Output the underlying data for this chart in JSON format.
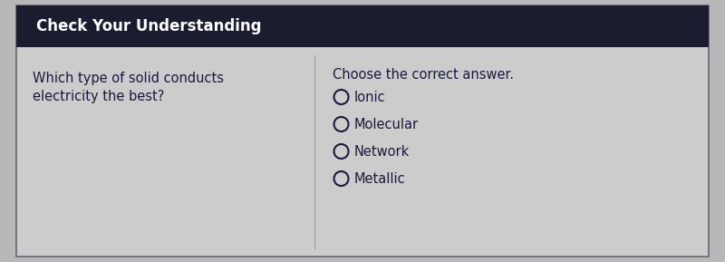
{
  "header_text": "Check Your Understanding",
  "header_bg_color": "#1c1c30",
  "header_text_color": "#ffffff",
  "body_bg_color": "#b8b8b8",
  "card_bg_color": "#cccccc",
  "question_text_line1": "Which type of solid conducts",
  "question_text_line2": "electricity the best?",
  "instruction_text": "Choose the correct answer.",
  "options": [
    "Ionic",
    "Molecular",
    "Network",
    "Metallic"
  ],
  "question_text_color": "#1a1a3e",
  "option_text_color": "#1a1a3e",
  "instruction_text_color": "#1a1a3e",
  "circle_edge_color": "#1a1a3e",
  "circle_face_color": "#cccccc",
  "border_color": "#666677",
  "divider_color": "#999999",
  "header_fontsize": 12,
  "question_fontsize": 10.5,
  "option_fontsize": 10.5,
  "instruction_fontsize": 10.5,
  "fig_width": 8.0,
  "fig_height": 2.89,
  "dpi": 100
}
